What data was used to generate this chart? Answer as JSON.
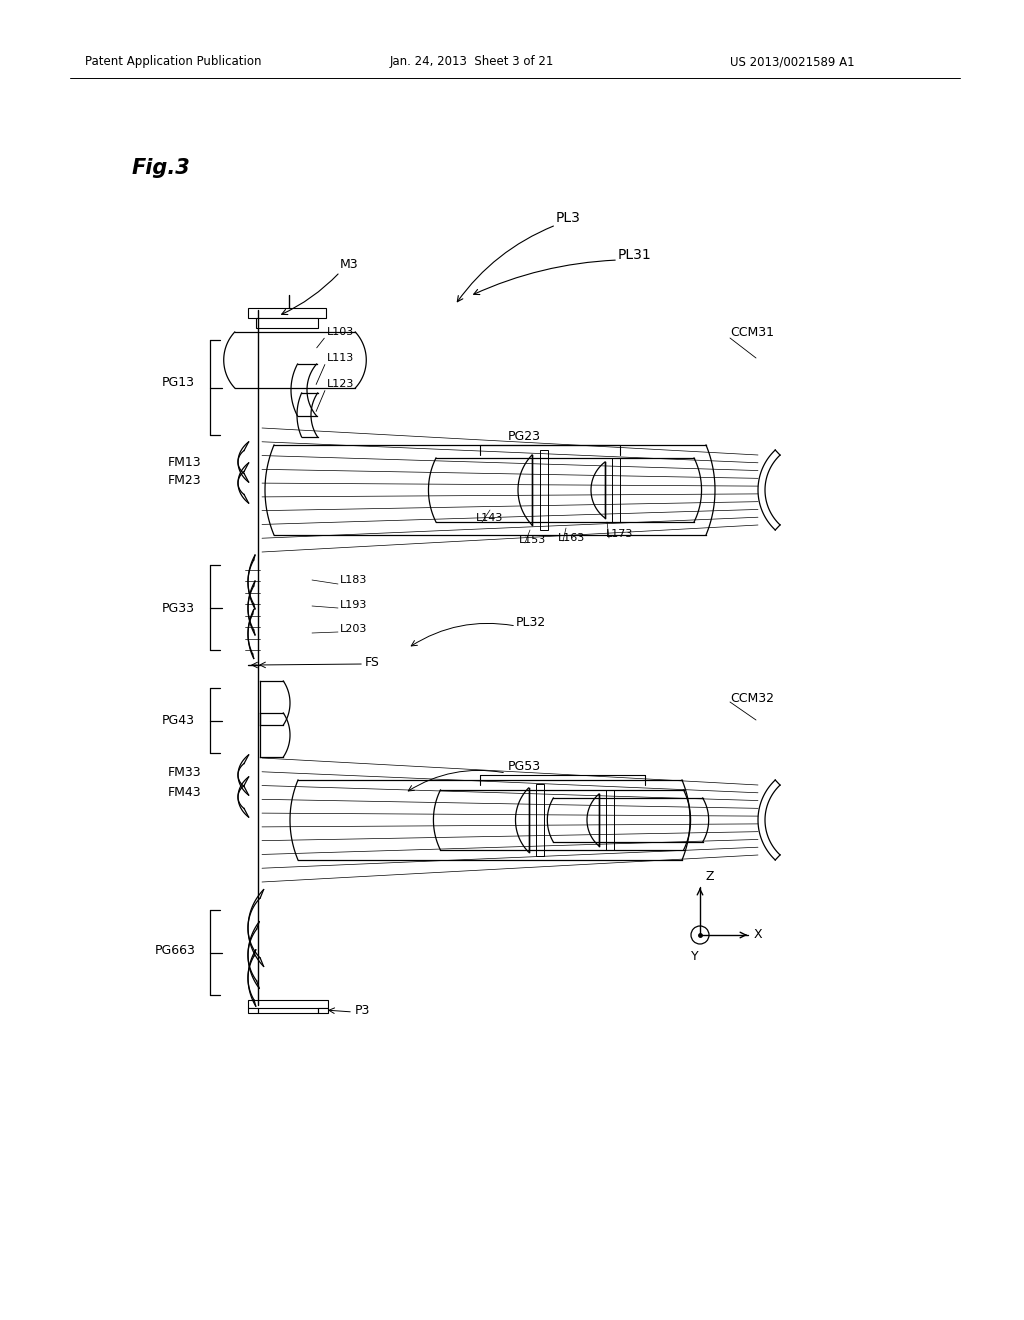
{
  "bg_color": "#ffffff",
  "line_color": "#000000",
  "text_color": "#000000",
  "header_left": "Patent Application Publication",
  "header_center": "Jan. 24, 2013  Sheet 3 of 21",
  "header_right": "US 2013/0021589 A1",
  "fig_label": "Fig.3"
}
